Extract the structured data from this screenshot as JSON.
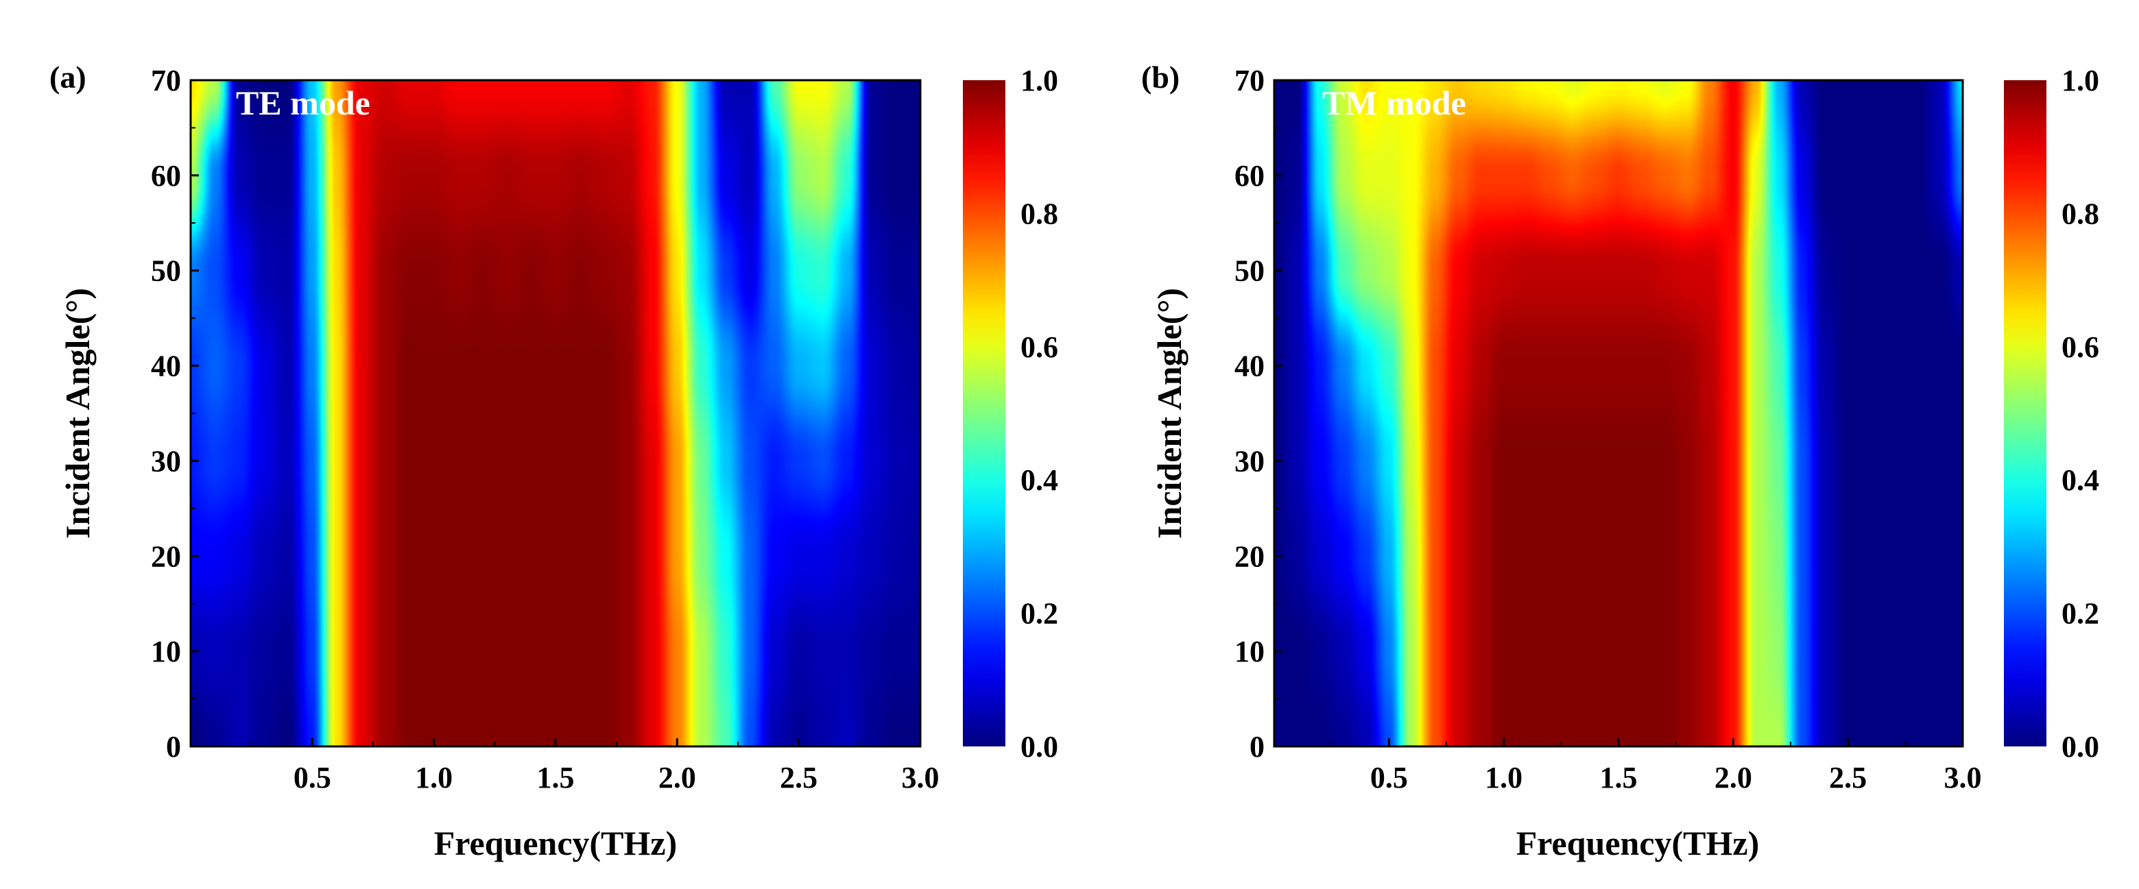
{
  "chart_data": [
    {
      "type": "heatmap",
      "panel_label": "(a)",
      "annotation": "TE mode",
      "xlabel": "Frequency(THz)",
      "ylabel": "Incident Angle(°)",
      "xlim": [
        0.0,
        3.0
      ],
      "ylim": [
        0,
        70
      ],
      "xticks": [
        0.5,
        1.0,
        1.5,
        2.0,
        2.5,
        3.0
      ],
      "xtick_labels": [
        "0.5",
        "1.0",
        "1.5",
        "2.0",
        "2.5",
        "3.0"
      ],
      "yticks": [
        0,
        10,
        20,
        30,
        40,
        50,
        60,
        70
      ],
      "ytick_labels": [
        "0",
        "10",
        "20",
        "30",
        "40",
        "50",
        "60",
        "70"
      ],
      "colorbar": {
        "min": 0.0,
        "max": 1.0,
        "ticks": [
          0.0,
          0.2,
          0.4,
          0.6,
          0.8,
          1.0
        ],
        "tick_labels": [
          "0.0",
          "0.2",
          "0.4",
          "0.6",
          "0.8",
          "1.0"
        ],
        "colormap": "jet"
      },
      "grid_x": [
        0.0,
        0.1,
        0.2,
        0.3,
        0.4,
        0.5,
        0.6,
        0.7,
        0.8,
        0.9,
        1.0,
        1.1,
        1.2,
        1.3,
        1.4,
        1.5,
        1.6,
        1.7,
        1.8,
        1.9,
        2.0,
        2.1,
        2.2,
        2.3,
        2.4,
        2.5,
        2.6,
        2.7,
        2.8,
        2.9,
        3.0
      ],
      "grid_y": [
        0,
        10,
        20,
        30,
        40,
        50,
        60,
        70
      ],
      "z": [
        [
          0.0,
          0.02,
          0.05,
          0.02,
          0.0,
          0.15,
          0.65,
          0.9,
          0.97,
          1.0,
          1.0,
          1.0,
          1.0,
          1.0,
          1.0,
          1.0,
          1.0,
          1.0,
          0.98,
          0.9,
          0.75,
          0.55,
          0.45,
          0.2,
          0.05,
          0.02,
          0.04,
          0.06,
          0.02,
          0.0,
          0.0
        ],
        [
          0.05,
          0.06,
          0.05,
          0.03,
          0.02,
          0.18,
          0.65,
          0.9,
          0.97,
          1.0,
          1.0,
          1.0,
          1.0,
          1.0,
          1.0,
          1.0,
          1.0,
          1.0,
          0.98,
          0.9,
          0.75,
          0.55,
          0.42,
          0.22,
          0.08,
          0.04,
          0.05,
          0.05,
          0.03,
          0.02,
          0.02
        ],
        [
          0.12,
          0.12,
          0.1,
          0.06,
          0.04,
          0.2,
          0.65,
          0.9,
          0.97,
          1.0,
          1.0,
          1.0,
          1.0,
          1.0,
          1.0,
          1.0,
          1.0,
          1.0,
          0.98,
          0.9,
          0.72,
          0.5,
          0.38,
          0.22,
          0.12,
          0.1,
          0.1,
          0.08,
          0.06,
          0.04,
          0.03
        ],
        [
          0.15,
          0.18,
          0.16,
          0.1,
          0.06,
          0.22,
          0.65,
          0.9,
          0.97,
          1.0,
          1.0,
          1.0,
          1.0,
          1.0,
          1.0,
          1.0,
          1.0,
          1.0,
          0.98,
          0.9,
          0.72,
          0.48,
          0.32,
          0.2,
          0.15,
          0.18,
          0.2,
          0.15,
          0.08,
          0.05,
          0.04
        ],
        [
          0.18,
          0.22,
          0.18,
          0.1,
          0.05,
          0.25,
          0.65,
          0.9,
          0.97,
          1.0,
          1.0,
          1.0,
          1.0,
          1.0,
          1.0,
          1.0,
          1.0,
          1.0,
          0.98,
          0.88,
          0.68,
          0.42,
          0.28,
          0.18,
          0.22,
          0.3,
          0.32,
          0.22,
          0.08,
          0.04,
          0.03
        ],
        [
          0.25,
          0.2,
          0.12,
          0.05,
          0.04,
          0.28,
          0.66,
          0.9,
          0.97,
          0.99,
          0.99,
          0.98,
          0.99,
          0.98,
          0.99,
          0.98,
          0.99,
          0.98,
          0.97,
          0.88,
          0.65,
          0.35,
          0.18,
          0.1,
          0.25,
          0.4,
          0.42,
          0.3,
          0.05,
          0.02,
          0.02
        ],
        [
          0.55,
          0.25,
          0.05,
          0.02,
          0.02,
          0.3,
          0.68,
          0.9,
          0.95,
          0.96,
          0.96,
          0.95,
          0.95,
          0.96,
          0.95,
          0.95,
          0.96,
          0.95,
          0.94,
          0.86,
          0.62,
          0.3,
          0.1,
          0.06,
          0.3,
          0.52,
          0.55,
          0.42,
          0.02,
          0.0,
          0.0
        ],
        [
          0.65,
          0.55,
          0.02,
          0.0,
          0.0,
          0.32,
          0.72,
          0.9,
          0.92,
          0.9,
          0.9,
          0.88,
          0.88,
          0.88,
          0.88,
          0.88,
          0.88,
          0.88,
          0.9,
          0.85,
          0.62,
          0.3,
          0.05,
          0.05,
          0.45,
          0.62,
          0.62,
          0.55,
          0.02,
          0.0,
          0.0
        ]
      ]
    },
    {
      "type": "heatmap",
      "panel_label": "(b)",
      "annotation": "TM mode",
      "xlabel": "Frequency(THz)",
      "ylabel": "Incident Angle(°)",
      "xlim": [
        0.0,
        3.0
      ],
      "ylim": [
        0,
        70
      ],
      "xticks": [
        0.5,
        1.0,
        1.5,
        2.0,
        2.5,
        3.0
      ],
      "xtick_labels": [
        "0.5",
        "1.0",
        "1.5",
        "2.0",
        "2.5",
        "3.0"
      ],
      "yticks": [
        0,
        10,
        20,
        30,
        40,
        50,
        60,
        70
      ],
      "ytick_labels": [
        "0",
        "10",
        "20",
        "30",
        "40",
        "50",
        "60",
        "70"
      ],
      "colorbar": {
        "min": 0.0,
        "max": 1.0,
        "ticks": [
          0.0,
          0.2,
          0.4,
          0.6,
          0.8,
          1.0
        ],
        "tick_labels": [
          "0.0",
          "0.2",
          "0.4",
          "0.6",
          "0.8",
          "1.0"
        ],
        "colormap": "jet"
      },
      "grid_x": [
        0.0,
        0.1,
        0.2,
        0.3,
        0.4,
        0.5,
        0.6,
        0.7,
        0.8,
        0.9,
        1.0,
        1.1,
        1.2,
        1.3,
        1.4,
        1.5,
        1.6,
        1.7,
        1.8,
        1.9,
        2.0,
        2.1,
        2.2,
        2.3,
        2.4,
        2.5,
        2.6,
        2.7,
        2.8,
        2.9,
        3.0
      ],
      "grid_y": [
        0,
        10,
        20,
        30,
        40,
        50,
        60,
        70
      ],
      "z": [
        [
          0.0,
          0.0,
          0.0,
          0.02,
          0.05,
          0.2,
          0.55,
          0.8,
          0.92,
          0.97,
          1.0,
          1.0,
          1.0,
          1.0,
          1.0,
          1.0,
          1.0,
          1.0,
          0.98,
          0.95,
          0.86,
          0.55,
          0.55,
          0.2,
          0.05,
          0.0,
          0.0,
          0.0,
          0.0,
          0.0,
          0.0
        ],
        [
          0.0,
          0.0,
          0.02,
          0.05,
          0.1,
          0.25,
          0.55,
          0.8,
          0.92,
          0.97,
          1.0,
          1.0,
          1.0,
          1.0,
          1.0,
          1.0,
          1.0,
          1.0,
          0.98,
          0.95,
          0.86,
          0.55,
          0.52,
          0.2,
          0.05,
          0.0,
          0.0,
          0.0,
          0.0,
          0.0,
          0.0
        ],
        [
          0.0,
          0.03,
          0.08,
          0.12,
          0.18,
          0.3,
          0.56,
          0.8,
          0.92,
          0.97,
          1.0,
          1.0,
          1.0,
          1.0,
          1.0,
          1.0,
          1.0,
          1.0,
          0.98,
          0.95,
          0.86,
          0.55,
          0.5,
          0.2,
          0.05,
          0.0,
          0.0,
          0.0,
          0.0,
          0.0,
          0.0
        ],
        [
          0.0,
          0.05,
          0.12,
          0.18,
          0.25,
          0.35,
          0.58,
          0.8,
          0.92,
          0.97,
          1.0,
          1.0,
          1.0,
          1.0,
          1.0,
          1.0,
          1.0,
          1.0,
          0.98,
          0.95,
          0.86,
          0.55,
          0.48,
          0.2,
          0.05,
          0.0,
          0.0,
          0.0,
          0.0,
          0.0,
          0.0
        ],
        [
          0.0,
          0.05,
          0.15,
          0.25,
          0.35,
          0.42,
          0.6,
          0.8,
          0.9,
          0.95,
          0.98,
          0.98,
          0.98,
          0.98,
          0.98,
          0.98,
          0.98,
          0.98,
          0.97,
          0.94,
          0.86,
          0.55,
          0.45,
          0.18,
          0.04,
          0.0,
          0.0,
          0.0,
          0.0,
          0.0,
          0.0
        ],
        [
          0.0,
          0.05,
          0.25,
          0.45,
          0.52,
          0.55,
          0.62,
          0.78,
          0.88,
          0.92,
          0.93,
          0.94,
          0.94,
          0.94,
          0.94,
          0.94,
          0.94,
          0.93,
          0.92,
          0.92,
          0.86,
          0.55,
          0.4,
          0.15,
          0.02,
          0.0,
          0.0,
          0.0,
          0.0,
          0.0,
          0.05
        ],
        [
          0.0,
          0.02,
          0.35,
          0.55,
          0.6,
          0.6,
          0.62,
          0.7,
          0.78,
          0.82,
          0.82,
          0.82,
          0.8,
          0.78,
          0.8,
          0.82,
          0.8,
          0.78,
          0.76,
          0.8,
          0.88,
          0.6,
          0.35,
          0.1,
          0.0,
          0.0,
          0.0,
          0.0,
          0.0,
          0.05,
          0.25
        ],
        [
          0.0,
          0.0,
          0.4,
          0.58,
          0.65,
          0.62,
          0.62,
          0.65,
          0.68,
          0.66,
          0.65,
          0.63,
          0.62,
          0.6,
          0.62,
          0.63,
          0.62,
          0.6,
          0.62,
          0.75,
          0.88,
          0.7,
          0.3,
          0.05,
          0.0,
          0.0,
          0.0,
          0.0,
          0.0,
          0.05,
          0.35
        ]
      ]
    }
  ]
}
